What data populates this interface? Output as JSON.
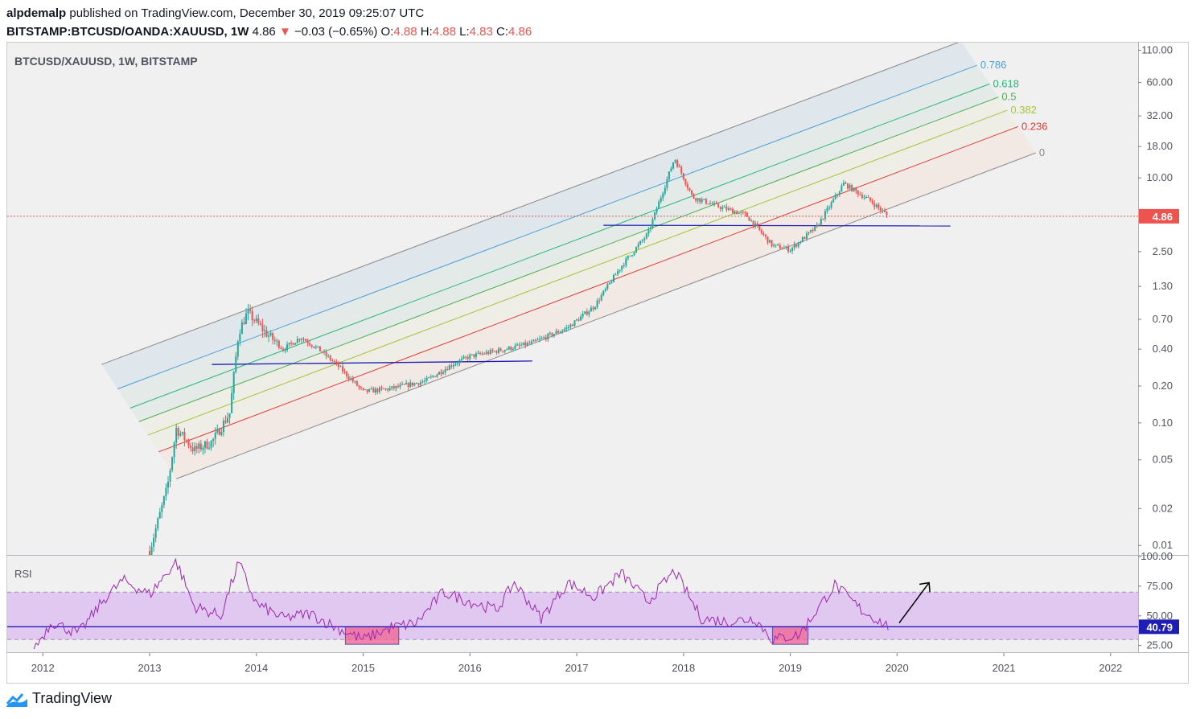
{
  "header": {
    "author": "alpdemalp",
    "published_text": "published on TradingView.com, December 30, 2019 09:25:07 UTC",
    "symbol": "BITSTAMP:BTCUSD/OANDA:XAUUSD, 1W",
    "last_price": "4.86",
    "change_arrow": "▼",
    "change": "−0.03 (−0.65%)",
    "o_label": "O:",
    "o_value": "4.88",
    "h_label": "H:",
    "h_value": "4.88",
    "l_label": "L:",
    "l_value": "4.83",
    "c_label": "C:",
    "c_value": "4.86"
  },
  "footer": {
    "brand": "TradingView"
  },
  "colors": {
    "up": "#26a69a",
    "down": "#ef5350",
    "rsi_line": "#9c27b0",
    "rsi_band": "#e1c8f0",
    "support_line": "#1e1eb4",
    "fib_0786": "#4a9fd8",
    "fib_0618": "#26b87a",
    "fib_05": "#4caf50",
    "fib_0382": "#a6c53a",
    "fib_0236": "#e53935",
    "fib_0": "#888888"
  },
  "chart_data": [
    {
      "type": "candlestick",
      "title": "BTCUSD/XAUUSD, 1W, BITSTAMP",
      "yscale": "log",
      "ylim": [
        0.0085,
        125
      ],
      "x_range": [
        "2011-09",
        "2022-04"
      ],
      "x_ticks": [
        "2012",
        "2013",
        "2014",
        "2015",
        "2016",
        "2017",
        "2018",
        "2019",
        "2020",
        "2021",
        "2022"
      ],
      "y_ticks": [
        "110.00",
        "60.00",
        "32.00",
        "18.00",
        "10.00",
        "4.86",
        "2.50",
        "1.30",
        "0.70",
        "0.40",
        "0.20",
        "0.10",
        "0.05",
        "0.02",
        "0.01"
      ],
      "last_value_label": "4.86",
      "price_path": [
        [
          "2013-01",
          0.009
        ],
        [
          "2013-03",
          0.03
        ],
        [
          "2013-04",
          0.09
        ],
        [
          "2013-06",
          0.06
        ],
        [
          "2013-08",
          0.07
        ],
        [
          "2013-10",
          0.12
        ],
        [
          "2013-11",
          0.55
        ],
        [
          "2013-12",
          0.8
        ],
        [
          "2014-02",
          0.55
        ],
        [
          "2014-04",
          0.4
        ],
        [
          "2014-06",
          0.5
        ],
        [
          "2014-08",
          0.4
        ],
        [
          "2014-10",
          0.3
        ],
        [
          "2015-01",
          0.18
        ],
        [
          "2015-04",
          0.19
        ],
        [
          "2015-08",
          0.22
        ],
        [
          "2015-11",
          0.3
        ],
        [
          "2016-01",
          0.35
        ],
        [
          "2016-05",
          0.4
        ],
        [
          "2016-08",
          0.45
        ],
        [
          "2016-12",
          0.6
        ],
        [
          "2017-03",
          0.9
        ],
        [
          "2017-06",
          1.9
        ],
        [
          "2017-09",
          3.5
        ],
        [
          "2017-12",
          14.5
        ],
        [
          "2018-02",
          7.0
        ],
        [
          "2018-05",
          5.8
        ],
        [
          "2018-08",
          5.0
        ],
        [
          "2018-11",
          2.8
        ],
        [
          "2019-01",
          2.6
        ],
        [
          "2019-04",
          4.0
        ],
        [
          "2019-07",
          9.0
        ],
        [
          "2019-10",
          6.5
        ],
        [
          "2019-12",
          4.86
        ]
      ],
      "annotations": {
        "fib_channel_levels": [
          "0.786",
          "0.618",
          "0.5",
          "0.382",
          "0.236",
          "0"
        ],
        "support_lines": [
          {
            "from": [
              "2013-08",
              0.3
            ],
            "to": [
              "2016-08",
              0.32
            ]
          },
          {
            "from": [
              "2017-04",
              4.1
            ],
            "to": [
              "2020-07",
              4.05
            ]
          }
        ]
      }
    },
    {
      "type": "line",
      "title": "RSI",
      "ylim": [
        20,
        100
      ],
      "y_ticks": [
        "100.00",
        "75.00",
        "50.00",
        "25.00"
      ],
      "band": [
        30,
        70
      ],
      "threshold": 40.79,
      "last_value_label": "40.79",
      "series": [
        {
          "values": [
            [
              "2011-12",
              22
            ],
            [
              "2012-02",
              45
            ],
            [
              "2012-05",
              35
            ],
            [
              "2012-08",
              65
            ],
            [
              "2012-10",
              80
            ],
            [
              "2013-01",
              68
            ],
            [
              "2013-04",
              96
            ],
            [
              "2013-06",
              58
            ],
            [
              "2013-09",
              50
            ],
            [
              "2013-11",
              95
            ],
            [
              "2014-01",
              60
            ],
            [
              "2014-04",
              48
            ],
            [
              "2014-07",
              52
            ],
            [
              "2014-10",
              40
            ],
            [
              "2015-01",
              30
            ],
            [
              "2015-04",
              40
            ],
            [
              "2015-07",
              44
            ],
            [
              "2015-10",
              70
            ],
            [
              "2016-01",
              62
            ],
            [
              "2016-04",
              55
            ],
            [
              "2016-06",
              78
            ],
            [
              "2016-09",
              48
            ],
            [
              "2016-12",
              78
            ],
            [
              "2017-03",
              66
            ],
            [
              "2017-06",
              86
            ],
            [
              "2017-09",
              62
            ],
            [
              "2017-12",
              88
            ],
            [
              "2018-03",
              48
            ],
            [
              "2018-06",
              45
            ],
            [
              "2018-09",
              48
            ],
            [
              "2018-11",
              30
            ],
            [
              "2019-02",
              34
            ],
            [
              "2019-04",
              55
            ],
            [
              "2019-06",
              76
            ],
            [
              "2019-09",
              55
            ],
            [
              "2019-12",
              40.8
            ]
          ]
        }
      ],
      "highlight_zones": [
        [
          "2014-11",
          "2015-05"
        ],
        [
          "2018-11",
          "2019-03"
        ]
      ]
    }
  ]
}
